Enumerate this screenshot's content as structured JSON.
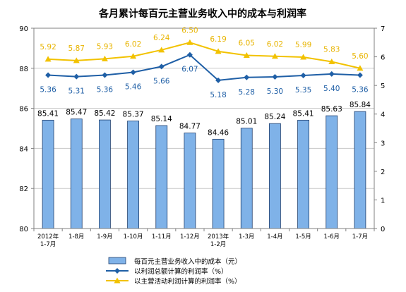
{
  "chart_data": {
    "type": "bar",
    "title": "各月累计每百元主营业务收入中的成本与利润率",
    "categories": [
      [
        "2012年",
        "1-7月"
      ],
      [
        "1-8月"
      ],
      [
        "1-9月"
      ],
      [
        "1-10月"
      ],
      [
        "1-11月"
      ],
      [
        "1-12月"
      ],
      [
        "2013年",
        "1-2月"
      ],
      [
        "1-3月"
      ],
      [
        "1-4月"
      ],
      [
        "1-5月"
      ],
      [
        "1-6月"
      ],
      [
        "1-7月"
      ]
    ],
    "y_left": {
      "min": 80,
      "max": 90,
      "ticks": [
        80,
        82,
        84,
        86,
        88,
        90
      ]
    },
    "y_right": {
      "min": 0,
      "max": 7,
      "ticks": [
        0,
        1,
        2,
        3,
        4,
        5,
        6,
        7
      ]
    },
    "series": [
      {
        "name": "每百元主营业务收入中的成本（元）",
        "type": "bar",
        "axis": "left",
        "color": "#7fb2e8",
        "label_color": "#000000",
        "values": [
          85.41,
          85.47,
          85.42,
          85.37,
          85.14,
          84.77,
          84.46,
          85.01,
          85.24,
          85.41,
          85.63,
          85.84
        ],
        "labels": [
          "85.41",
          "85.47",
          "85.42",
          "85.37",
          "85.14",
          "84.77",
          "84.46",
          "85.01",
          "85.24",
          "85.41",
          "85.63",
          "85.84"
        ]
      },
      {
        "name": "以利润总额计算的利润率（%）",
        "type": "line",
        "axis": "right",
        "color": "#1f5fa6",
        "label_color": "#1f5fa6",
        "marker": "diamond",
        "values": [
          5.36,
          5.31,
          5.36,
          5.46,
          5.66,
          6.07,
          5.18,
          5.28,
          5.3,
          5.35,
          5.4,
          5.36
        ],
        "labels": [
          "5.36",
          "5.31",
          "5.36",
          "5.46",
          "5.66",
          "6.07",
          "5.18",
          "5.28",
          "5.30",
          "5.35",
          "5.40",
          "5.36"
        ]
      },
      {
        "name": "以主营活动利润计算的利润率（%）",
        "type": "line",
        "axis": "right",
        "color": "#f2c200",
        "label_color": "#e8b400",
        "marker": "triangle",
        "values": [
          5.92,
          5.87,
          5.93,
          6.02,
          6.24,
          6.5,
          6.19,
          6.05,
          6.02,
          5.99,
          5.83,
          5.6
        ],
        "labels": [
          "5.92",
          "5.87",
          "5.93",
          "6.02",
          "6.24",
          "6.50",
          "6.19",
          "6.05",
          "6.02",
          "5.99",
          "5.83",
          "5.60"
        ]
      }
    ],
    "grid": true,
    "legend_position": "bottom"
  }
}
